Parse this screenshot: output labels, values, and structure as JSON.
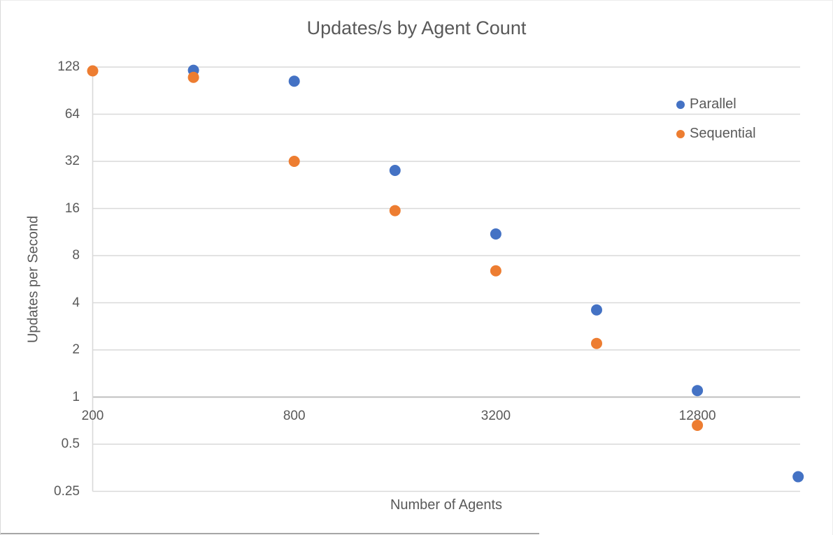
{
  "chart_data": {
    "type": "scatter",
    "title": "Updates/s by Agent Count",
    "xlabel": "Number of Agents",
    "ylabel": "Updates per Second",
    "x_scale": "log2",
    "y_scale": "log2",
    "x_ticks": [
      200,
      800,
      3200,
      12800
    ],
    "y_ticks": [
      128,
      64,
      32,
      16,
      8,
      4,
      2,
      1,
      0.5,
      0.25
    ],
    "x_range": [
      200,
      25600
    ],
    "y_range": [
      0.25,
      128
    ],
    "x_axis_crosses_y_at": 1,
    "grid": true,
    "legend_position": "right",
    "series": [
      {
        "name": "Parallel",
        "color": "#4472C4",
        "points": [
          [
            400,
            122
          ],
          [
            800,
            104
          ],
          [
            1600,
            28
          ],
          [
            3200,
            11
          ],
          [
            6400,
            3.6
          ],
          [
            12800,
            1.1
          ],
          [
            25600,
            0.31
          ]
        ]
      },
      {
        "name": "Sequential",
        "color": "#ED7D31",
        "points": [
          [
            200,
            121
          ],
          [
            400,
            110
          ],
          [
            800,
            32
          ],
          [
            1600,
            15.5
          ],
          [
            3200,
            6.4
          ],
          [
            6400,
            2.2
          ],
          [
            12800,
            0.66
          ]
        ]
      }
    ],
    "colors": {
      "text": "#595959",
      "gridline": "#D9D9D9",
      "axis_line": "#BFBFBF"
    }
  }
}
